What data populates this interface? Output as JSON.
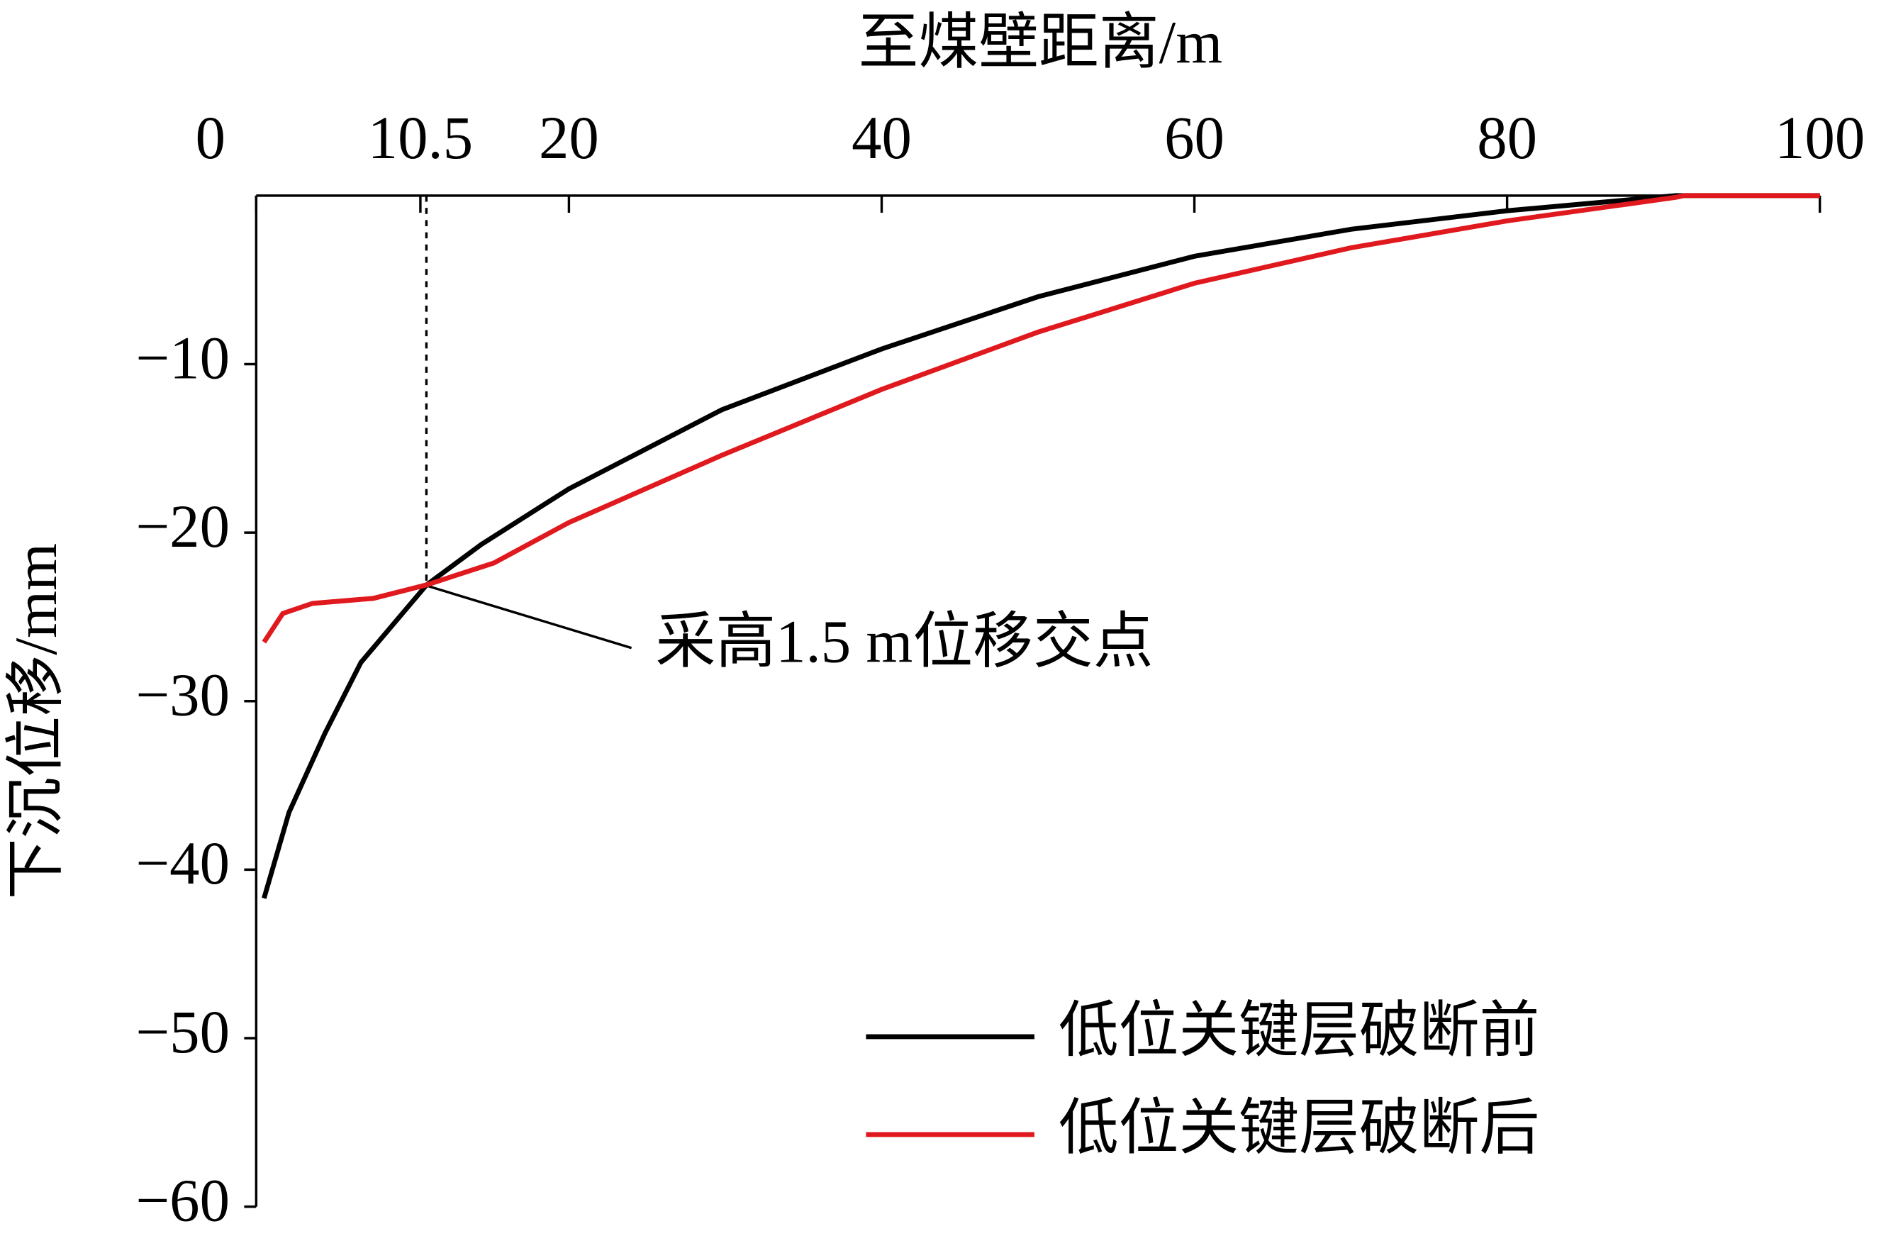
{
  "chart_data": {
    "type": "line",
    "xlabel": "至煤壁距离/m",
    "ylabel": "下沉位移/mm",
    "xlim": [
      0,
      100
    ],
    "xticks": [
      0,
      10.5,
      20,
      40,
      60,
      80,
      100
    ],
    "ylim": [
      -60,
      0
    ],
    "yticks": [
      {
        "value": -60,
        "label": "−60"
      },
      {
        "value": -50,
        "label": "−50"
      },
      {
        "value": -40,
        "label": "−40"
      },
      {
        "value": -30,
        "label": "−30"
      },
      {
        "value": -20,
        "label": "−20"
      },
      {
        "value": -10,
        "label": "−10"
      }
    ],
    "annotation": "采高1.5 m位移交点",
    "legend": "bottom-right",
    "series": [
      {
        "name": "低位关键层破断前",
        "color": "#000000",
        "x": [
          0.5,
          2.1,
          4.4,
          6.7,
          10.9,
          14.4,
          20,
          29.8,
          40,
          50,
          60,
          70,
          80,
          90.8,
          100
        ],
        "values": [
          -41.7,
          -36.6,
          -31.9,
          -27.7,
          -23.1,
          -20.7,
          -17.4,
          -12.7,
          -9.1,
          -6.0,
          -3.6,
          -2.0,
          -0.9,
          0,
          0
        ]
      },
      {
        "name": "低位关键层破断后",
        "color": "#e0191e",
        "x": [
          0.5,
          1.7,
          3.6,
          7.5,
          10.9,
          15.2,
          20,
          29.8,
          40,
          50,
          60,
          70,
          80,
          90.8,
          91.3,
          100
        ],
        "values": [
          -26.5,
          -24.8,
          -24.2,
          -23.9,
          -23.1,
          -21.8,
          -19.4,
          -15.4,
          -11.5,
          -8.1,
          -5.2,
          -3.1,
          -1.5,
          -0.1,
          0,
          0
        ]
      }
    ]
  }
}
